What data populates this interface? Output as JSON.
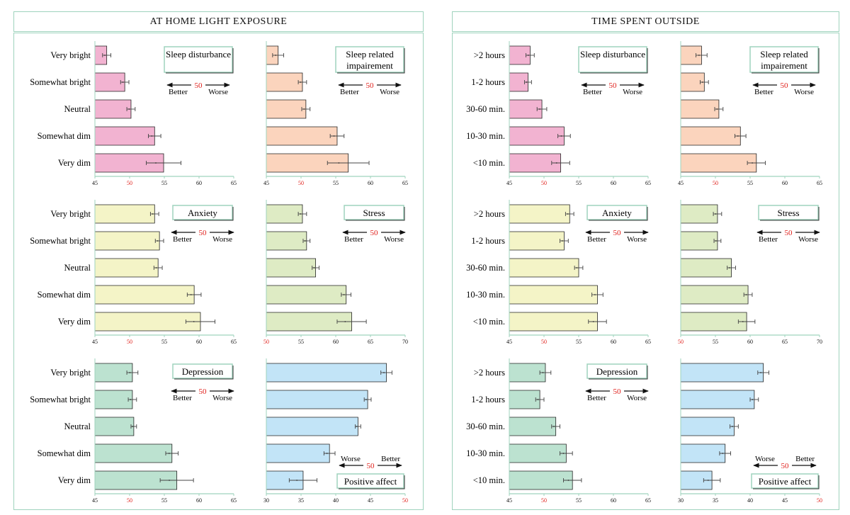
{
  "headers": {
    "left": "AT HOME LIGHT EXPOSURE",
    "right": "TIME SPENT OUTSIDE"
  },
  "legend": {
    "better": "Better",
    "worse": "Worse",
    "center": "50"
  },
  "colors": {
    "pink": "#f2b3d1",
    "peach": "#fbd4bd",
    "yellow": "#f4f4c7",
    "olive": "#deebc4",
    "mint": "#bce2d0",
    "sky": "#c2e4f7",
    "ref_red": "#e0201b",
    "axis": "#9fd3bd",
    "box_border": "#9fd3bd"
  },
  "chart_data": [
    {
      "type": "bar",
      "id": "home-sleep-disturbance",
      "title": "Sleep disturbance",
      "color": "pink",
      "categories": [
        "Very bright",
        "Somewhat bright",
        "Neutral",
        "Somewhat dim",
        "Very dim"
      ],
      "values": [
        46.7,
        49.3,
        50.2,
        53.6,
        54.9
      ],
      "errors": [
        0.6,
        0.6,
        0.6,
        0.9,
        2.5
      ],
      "xlim": [
        45,
        65
      ],
      "direction": "higher-worse"
    },
    {
      "type": "bar",
      "id": "home-sleep-impairment",
      "title": "Sleep related impairement",
      "color": "peach",
      "categories": [
        "Very bright",
        "Somewhat bright",
        "Neutral",
        "Somewhat dim",
        "Very dim"
      ],
      "values": [
        46.7,
        50.2,
        50.7,
        55.2,
        56.8
      ],
      "errors": [
        0.8,
        0.6,
        0.6,
        1.0,
        3.0
      ],
      "xlim": [
        45,
        65
      ],
      "direction": "higher-worse"
    },
    {
      "type": "bar",
      "id": "home-anxiety",
      "title": "Anxiety",
      "color": "yellow",
      "categories": [
        "Very bright",
        "Somewhat bright",
        "Neutral",
        "Somewhat dim",
        "Very dim"
      ],
      "values": [
        53.6,
        54.3,
        54.1,
        59.3,
        60.2
      ],
      "errors": [
        0.6,
        0.6,
        0.6,
        1.0,
        2.1
      ],
      "xlim": [
        45,
        65
      ],
      "direction": "higher-worse"
    },
    {
      "type": "bar",
      "id": "home-stress",
      "title": "Stress",
      "color": "olive",
      "categories": [
        "Very bright",
        "Somewhat bright",
        "Neutral",
        "Somewhat dim",
        "Very dim"
      ],
      "values": [
        55.2,
        55.8,
        57.1,
        61.5,
        62.3
      ],
      "errors": [
        0.6,
        0.5,
        0.5,
        0.7,
        2.1
      ],
      "xlim": [
        50,
        70
      ],
      "direction": "higher-worse"
    },
    {
      "type": "bar",
      "id": "home-depression",
      "title": "Depression",
      "color": "mint",
      "categories": [
        "Very bright",
        "Somewhat bright",
        "Neutral",
        "Somewhat dim",
        "Very dim"
      ],
      "values": [
        50.4,
        50.4,
        50.6,
        56.1,
        56.8
      ],
      "errors": [
        0.8,
        0.6,
        0.4,
        0.9,
        2.4
      ],
      "xlim": [
        45,
        65
      ],
      "direction": "higher-worse"
    },
    {
      "type": "bar",
      "id": "home-positive-affect",
      "title": "Positive affect",
      "color": "sky",
      "categories": [
        "Very bright",
        "Somewhat bright",
        "Neutral",
        "Somewhat dim",
        "Very dim"
      ],
      "values": [
        47.3,
        44.6,
        43.2,
        39.1,
        35.3
      ],
      "errors": [
        0.8,
        0.5,
        0.4,
        0.8,
        2.0
      ],
      "xlim": [
        30,
        50
      ],
      "direction": "higher-better"
    },
    {
      "type": "bar",
      "id": "outside-sleep-disturbance",
      "title": "Sleep disturbance",
      "color": "pink",
      "categories": [
        ">2 hours",
        "1-2 hours",
        "30-60 min.",
        "10-30 min.",
        "<10 min."
      ],
      "values": [
        48.0,
        47.7,
        49.7,
        52.9,
        52.4
      ],
      "errors": [
        0.6,
        0.5,
        0.7,
        0.9,
        1.3
      ],
      "xlim": [
        45,
        65
      ],
      "direction": "higher-worse"
    },
    {
      "type": "bar",
      "id": "outside-sleep-impairment",
      "title": "Sleep related impairement",
      "color": "peach",
      "categories": [
        ">2 hours",
        "1-2 hours",
        "30-60 min.",
        "10-30 min.",
        "<10 min."
      ],
      "values": [
        48.0,
        48.4,
        50.5,
        53.6,
        55.9
      ],
      "errors": [
        0.8,
        0.6,
        0.6,
        0.8,
        1.3
      ],
      "xlim": [
        45,
        65
      ],
      "direction": "higher-worse"
    },
    {
      "type": "bar",
      "id": "outside-anxiety",
      "title": "Anxiety",
      "color": "yellow",
      "categories": [
        ">2 hours",
        "1-2 hours",
        "30-60 min.",
        "10-30 min.",
        "<10 min."
      ],
      "values": [
        53.7,
        52.9,
        55.0,
        57.7,
        57.7
      ],
      "errors": [
        0.6,
        0.6,
        0.6,
        0.8,
        1.3
      ],
      "xlim": [
        45,
        65
      ],
      "direction": "higher-worse"
    },
    {
      "type": "bar",
      "id": "outside-stress",
      "title": "Stress",
      "color": "olive",
      "categories": [
        ">2 hours",
        "1-2 hours",
        "30-60 min.",
        "10-30 min.",
        "<10 min."
      ],
      "values": [
        55.3,
        55.3,
        57.3,
        59.7,
        59.5
      ],
      "errors": [
        0.6,
        0.5,
        0.6,
        0.6,
        1.2
      ],
      "xlim": [
        50,
        70
      ],
      "direction": "higher-worse"
    },
    {
      "type": "bar",
      "id": "outside-depression",
      "title": "Depression",
      "color": "mint",
      "categories": [
        ">2 hours",
        "1-2 hours",
        "30-60 min.",
        "10-30 min.",
        "<10 min."
      ],
      "values": [
        50.2,
        49.4,
        51.7,
        53.2,
        54.1
      ],
      "errors": [
        0.8,
        0.6,
        0.6,
        0.9,
        1.3
      ],
      "xlim": [
        45,
        65
      ],
      "direction": "higher-worse"
    },
    {
      "type": "bar",
      "id": "outside-positive-affect",
      "title": "Positive affect",
      "color": "sky",
      "categories": [
        ">2 hours",
        "1-2 hours",
        "30-60 min.",
        "10-30 min.",
        "<10 min."
      ],
      "values": [
        41.9,
        40.6,
        37.7,
        36.4,
        34.5
      ],
      "errors": [
        0.8,
        0.6,
        0.6,
        0.8,
        1.2
      ],
      "xlim": [
        30,
        50
      ],
      "direction": "higher-better"
    }
  ]
}
